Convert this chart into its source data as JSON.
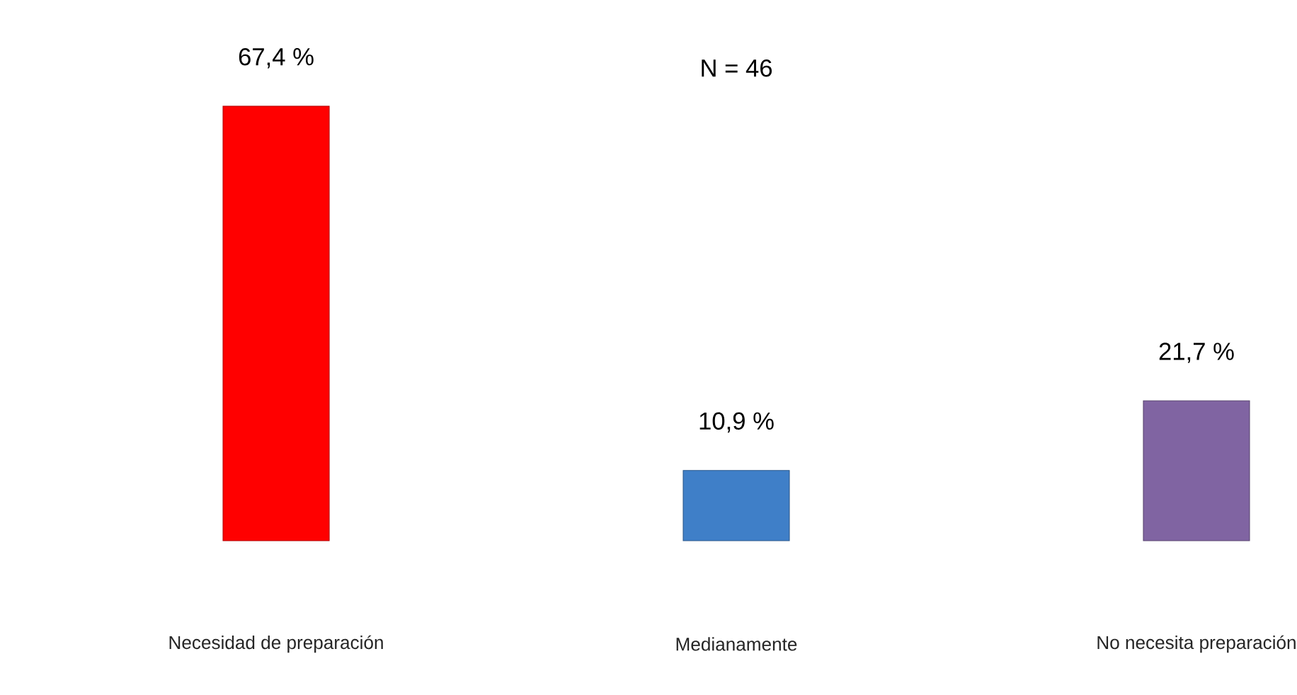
{
  "chart_data": {
    "type": "bar",
    "categories": [
      "Necesidad de preparación",
      "Medianamente",
      "No necesita preparación"
    ],
    "values": [
      67.4,
      10.9,
      21.7
    ],
    "colors": [
      "#ff0000",
      "#3f7fc8",
      "#8064a2"
    ],
    "value_labels": [
      "67,4 %",
      "10,9 %",
      "21,7 %"
    ],
    "annotations": [
      "N = 46"
    ]
  }
}
